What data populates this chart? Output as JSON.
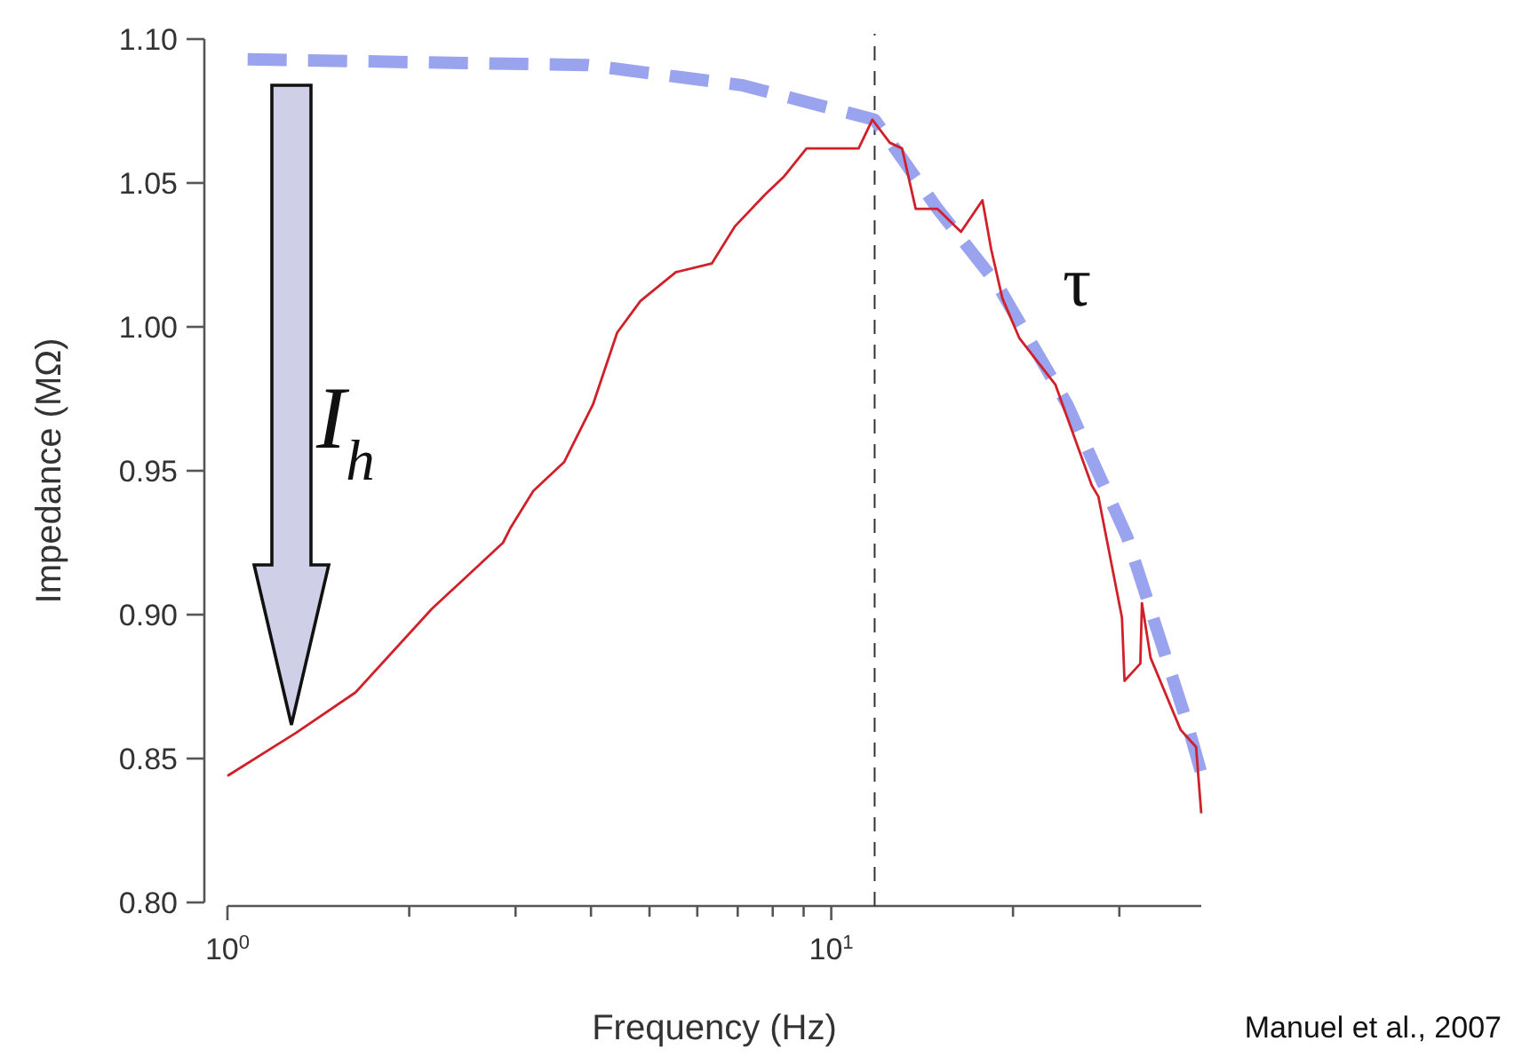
{
  "chart_data": {
    "type": "line",
    "xlabel": "Frequency (Hz)",
    "ylabel": "Impedance (MΩ)",
    "log": "x",
    "xlim": [
      1,
      41
    ],
    "ylim": [
      0.8,
      1.1
    ],
    "xticks": [
      {
        "value": 1,
        "label": "10$^{0}$"
      },
      {
        "value": 2,
        "label": null
      },
      {
        "value": 3,
        "label": null
      },
      {
        "value": 4,
        "label": null
      },
      {
        "value": 5,
        "label": null
      },
      {
        "value": 6,
        "label": null
      },
      {
        "value": 7,
        "label": null
      },
      {
        "value": 8,
        "label": null
      },
      {
        "value": 9,
        "label": null
      },
      {
        "value": 10,
        "label": "10$^{1}$"
      },
      {
        "value": 20,
        "label": null
      },
      {
        "value": 30,
        "label": null
      }
    ],
    "yticks": [
      {
        "value": 0.8,
        "label": "0.80"
      },
      {
        "value": 0.85,
        "label": "0.85"
      },
      {
        "value": 0.9,
        "label": "0.90"
      },
      {
        "value": 0.95,
        "label": "0.95"
      },
      {
        "value": 1.0,
        "label": "1.00"
      },
      {
        "value": 1.05,
        "label": "1.05"
      },
      {
        "value": 1.1,
        "label": "1.10"
      }
    ],
    "grid": false,
    "marker": "none",
    "series": [
      {
        "color": "#d0202a",
        "line_style": "solid",
        "x": [
          1,
          1.3,
          1.63,
          2.18,
          2.86,
          2.94,
          3.21,
          3.61,
          4.03,
          4.42,
          4.83,
          5.53,
          6.34,
          6.93,
          7.77,
          8.33,
          9.1,
          11.1,
          11.7,
          12.5,
          13.1,
          13.8,
          15.0,
          16.4,
          17.8,
          18.4,
          19.2,
          20.5,
          23.5,
          27.0,
          27.7,
          30.3,
          30.6,
          32.5,
          32.7,
          33.8,
          37.9,
          40.2,
          41.0
        ],
        "values": [
          0.844,
          0.859,
          0.873,
          0.902,
          0.925,
          0.93,
          0.943,
          0.953,
          0.973,
          0.998,
          1.009,
          1.019,
          1.022,
          1.035,
          1.046,
          1.052,
          1.062,
          1.062,
          1.072,
          1.064,
          1.062,
          1.041,
          1.041,
          1.033,
          1.044,
          1.027,
          1.01,
          0.996,
          0.98,
          0.945,
          0.941,
          0.899,
          0.877,
          0.883,
          0.904,
          0.885,
          0.86,
          0.854,
          0.831
        ]
      },
      {
        "color": "#9aa4ee",
        "line_style": "dashed",
        "x": [
          1.08,
          2,
          3.94,
          7.1,
          11.8,
          15,
          18.8,
          24.6,
          30.9,
          38.9,
          41
        ],
        "values": [
          1.093,
          1.092,
          1.091,
          1.084,
          1.072,
          1.041,
          1.015,
          0.973,
          0.927,
          0.862,
          0.845
        ]
      }
    ],
    "ref_lines": [
      {
        "axis": "x",
        "value": 11.8,
        "color": "#333333",
        "line_style": "dashed"
      }
    ],
    "annotations": [
      "I$_{h}$",
      "τ",
      "Manuel et al., 2007"
    ]
  }
}
